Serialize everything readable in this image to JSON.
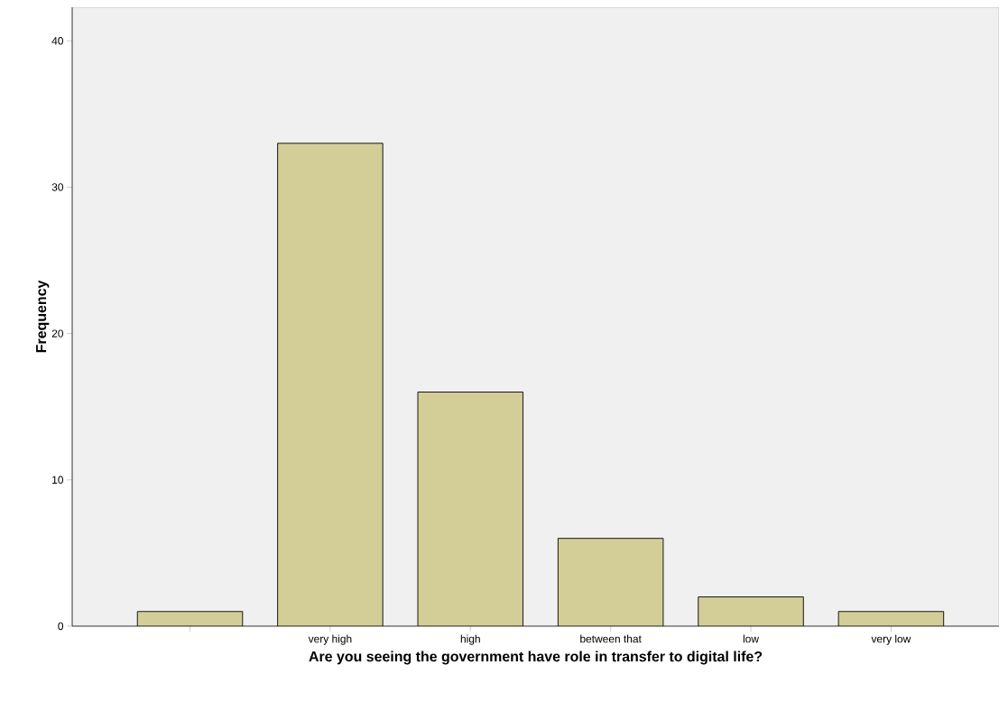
{
  "chart_data": {
    "type": "bar",
    "xlabel": "Are you seeing the government have role in transfer to digital life?",
    "ylabel": "Frequency",
    "categories": [
      null,
      "very high",
      "high",
      "between that",
      "low",
      "very low"
    ],
    "values": [
      1,
      33,
      16,
      6,
      2,
      1
    ],
    "color": "#d3ce97",
    "ylim": [
      0,
      42.3
    ],
    "yticks": [
      0,
      10,
      20,
      30,
      40
    ]
  }
}
